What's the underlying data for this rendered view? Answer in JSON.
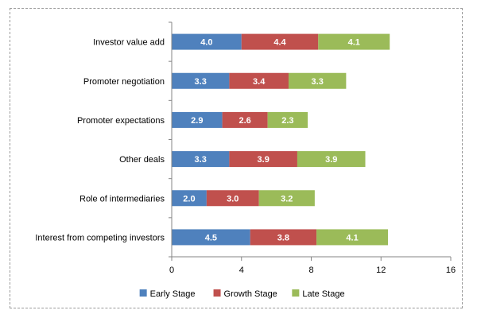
{
  "chart_data": {
    "type": "bar",
    "stacked": true,
    "orientation": "horizontal",
    "categories": [
      "Investor value add",
      "Promoter negotiation",
      "Promoter expectations",
      "Other deals",
      "Role of intermediaries",
      "Interest from competing investors"
    ],
    "series": [
      {
        "name": "Early Stage",
        "color": "#4F81BD",
        "values": [
          4.0,
          3.3,
          2.9,
          3.3,
          2.0,
          4.5
        ]
      },
      {
        "name": "Growth Stage",
        "color": "#C0504D",
        "values": [
          4.4,
          3.4,
          2.6,
          3.9,
          3.0,
          3.8
        ]
      },
      {
        "name": "Late Stage",
        "color": "#9BBB59",
        "values": [
          4.1,
          3.3,
          2.3,
          3.9,
          3.2,
          4.1
        ]
      }
    ],
    "xlim": [
      0,
      16
    ],
    "xticks": [
      0,
      4,
      8,
      12,
      16
    ],
    "title": "",
    "xlabel": "",
    "ylabel": "",
    "grid": false,
    "legend_position": "bottom"
  }
}
